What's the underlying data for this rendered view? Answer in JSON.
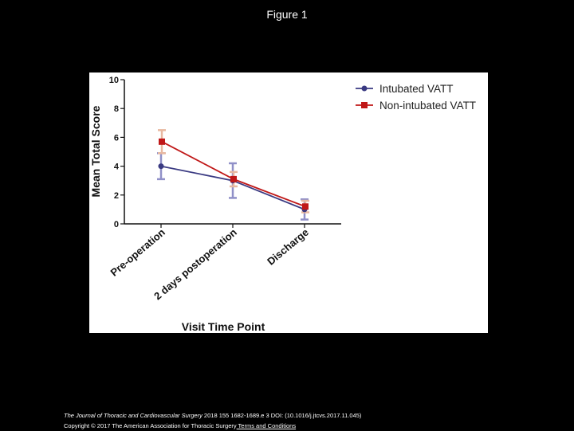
{
  "slide_title": "Figure 1",
  "footer": {
    "journal": "The Journal of Thoracic and Cardiovascular Surgery",
    "citation": " 2018 155 1682-1689.e 3 DOI: (10.1016/j.jtcvs.2017.11.045)",
    "copyright": "Copyright © 2017 The American Association for Thoracic Surgery",
    "link_text": " Terms and Conditions"
  },
  "chart_data": {
    "type": "line",
    "title": "",
    "xlabel": "Visit Time Point",
    "ylabel": "Mean Total Score",
    "ylim": [
      0,
      10
    ],
    "yticks": [
      "0",
      "2",
      "4",
      "6",
      "8",
      "10"
    ],
    "categories": [
      "Pre-operation",
      "2 days postoperation",
      "Discharge"
    ],
    "legend_position": "top-right",
    "grid": false,
    "series": [
      {
        "name": "Intubated VATT",
        "color": "#3a3a82",
        "error_color": "#9090c8",
        "marker": "circle",
        "values": [
          4.0,
          3.0,
          1.0
        ],
        "error_low": [
          3.1,
          1.8,
          0.3
        ],
        "error_high": [
          4.9,
          4.2,
          1.7
        ]
      },
      {
        "name": "Non-intubated VATT",
        "color": "#c01818",
        "error_color": "#e8b8a0",
        "marker": "square",
        "values": [
          5.7,
          3.1,
          1.2
        ],
        "error_low": [
          4.9,
          2.6,
          0.8
        ],
        "error_high": [
          6.5,
          3.6,
          1.6
        ]
      }
    ]
  }
}
